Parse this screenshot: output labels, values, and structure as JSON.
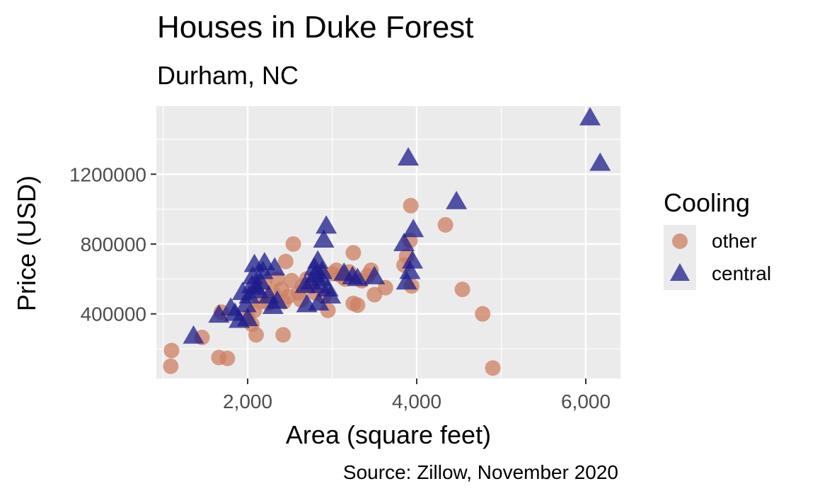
{
  "chart_data": {
    "type": "scatter",
    "title": "Houses in Duke Forest",
    "subtitle": "Durham, NC",
    "caption": "Source: Zillow, November 2020",
    "xlabel": "Area (square feet)",
    "ylabel": "Price (USD)",
    "xlim": [
      920,
      6410
    ],
    "ylim": [
      30000,
      1590000
    ],
    "x_ticks": [
      2000,
      4000,
      6000
    ],
    "x_tick_labels": [
      "2,000",
      "4,000",
      "6,000"
    ],
    "y_ticks": [
      400000,
      800000,
      1200000
    ],
    "y_tick_labels": [
      "400000",
      "800000",
      "1200000"
    ],
    "grid": true,
    "legend": {
      "title": "Cooling",
      "position": "right",
      "entries": [
        {
          "name": "other",
          "shape": "circle",
          "color": "#cd7f61"
        },
        {
          "name": "central",
          "shape": "triangle",
          "color": "#1c1c8c"
        }
      ]
    },
    "series": [
      {
        "name": "other",
        "shape": "circle",
        "color": "#cd7f61",
        "points": [
          [
            1090,
            100000
          ],
          [
            1100,
            190000
          ],
          [
            1460,
            265000
          ],
          [
            1660,
            150000
          ],
          [
            1690,
            410000
          ],
          [
            1760,
            145000
          ],
          [
            2000,
            380000
          ],
          [
            2050,
            340000
          ],
          [
            2080,
            420000
          ],
          [
            2100,
            280000
          ],
          [
            2150,
            470000
          ],
          [
            2200,
            580000
          ],
          [
            2250,
            460000
          ],
          [
            2300,
            520000
          ],
          [
            2350,
            600000
          ],
          [
            2400,
            540000
          ],
          [
            2420,
            280000
          ],
          [
            2430,
            470000
          ],
          [
            2450,
            700000
          ],
          [
            2480,
            500000
          ],
          [
            2520,
            590000
          ],
          [
            2540,
            800000
          ],
          [
            2600,
            520000
          ],
          [
            2630,
            480000
          ],
          [
            2650,
            560000
          ],
          [
            2700,
            600000
          ],
          [
            2750,
            560000
          ],
          [
            2800,
            520000
          ],
          [
            2850,
            640000
          ],
          [
            2900,
            500000
          ],
          [
            2950,
            420000
          ],
          [
            3000,
            630000
          ],
          [
            3050,
            650000
          ],
          [
            3100,
            620000
          ],
          [
            3150,
            600000
          ],
          [
            3200,
            640000
          ],
          [
            3250,
            460000
          ],
          [
            3250,
            750000
          ],
          [
            3300,
            450000
          ],
          [
            3350,
            590000
          ],
          [
            3420,
            620000
          ],
          [
            3460,
            650000
          ],
          [
            3500,
            510000
          ],
          [
            3630,
            550000
          ],
          [
            3850,
            680000
          ],
          [
            3880,
            730000
          ],
          [
            3920,
            820000
          ],
          [
            3930,
            1020000
          ],
          [
            3940,
            560000
          ],
          [
            4340,
            910000
          ],
          [
            4540,
            540000
          ],
          [
            4780,
            400000
          ],
          [
            4900,
            90000
          ]
        ]
      },
      {
        "name": "central",
        "shape": "triangle",
        "color": "#1c1c8c",
        "points": [
          [
            1360,
            270000
          ],
          [
            1660,
            390000
          ],
          [
            1800,
            430000
          ],
          [
            1850,
            400000
          ],
          [
            1900,
            360000
          ],
          [
            1940,
            520000
          ],
          [
            1980,
            450000
          ],
          [
            2000,
            370000
          ],
          [
            2020,
            500000
          ],
          [
            2050,
            560000
          ],
          [
            2060,
            610000
          ],
          [
            2080,
            680000
          ],
          [
            2100,
            550000
          ],
          [
            2120,
            530000
          ],
          [
            2150,
            580000
          ],
          [
            2180,
            640000
          ],
          [
            2200,
            690000
          ],
          [
            2250,
            500000
          ],
          [
            2300,
            440000
          ],
          [
            2320,
            660000
          ],
          [
            2350,
            470000
          ],
          [
            2680,
            560000
          ],
          [
            2700,
            450000
          ],
          [
            2750,
            580000
          ],
          [
            2790,
            660000
          ],
          [
            2800,
            620000
          ],
          [
            2830,
            700000
          ],
          [
            2840,
            460000
          ],
          [
            2860,
            560000
          ],
          [
            2870,
            600000
          ],
          [
            2880,
            640000
          ],
          [
            2900,
            820000
          ],
          [
            2930,
            900000
          ],
          [
            2950,
            540000
          ],
          [
            2980,
            500000
          ],
          [
            3140,
            630000
          ],
          [
            3240,
            610000
          ],
          [
            3300,
            600000
          ],
          [
            3500,
            610000
          ],
          [
            3850,
            800000
          ],
          [
            3880,
            580000
          ],
          [
            3900,
            1290000
          ],
          [
            3920,
            640000
          ],
          [
            3950,
            700000
          ],
          [
            3960,
            880000
          ],
          [
            4470,
            1040000
          ],
          [
            6050,
            1520000
          ],
          [
            6170,
            1260000
          ]
        ]
      }
    ]
  }
}
